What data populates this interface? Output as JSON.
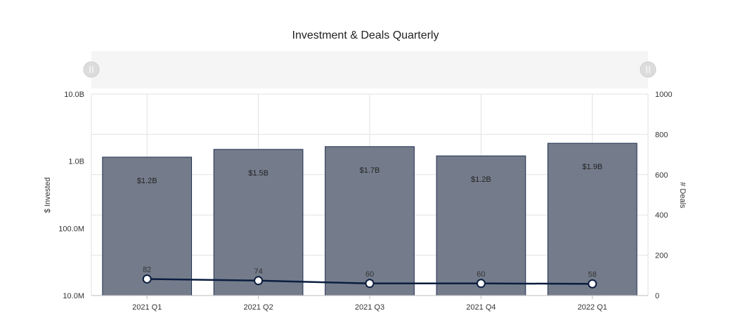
{
  "chart_data": {
    "type": "bar",
    "title": "Investment & Deals Quarterly",
    "categories": [
      "2021 Q1",
      "2021 Q2",
      "2021 Q3",
      "2021 Q4",
      "2022 Q1"
    ],
    "y_left": {
      "label": "$ Invested",
      "scale": "log",
      "ticks": [
        "10.0M",
        "100.0M",
        "1.0B",
        "10.0B"
      ],
      "tick_values": [
        10000000,
        100000000,
        1000000000,
        10000000000
      ],
      "range": [
        10000000,
        10000000000
      ]
    },
    "y_right": {
      "label": "# Deals",
      "scale": "linear",
      "ticks": [
        "0",
        "200",
        "400",
        "600",
        "800",
        "1000"
      ],
      "tick_values": [
        0,
        200,
        400,
        600,
        800,
        1000
      ],
      "range": [
        0,
        1000
      ]
    },
    "series": [
      {
        "name": "$ Invested",
        "type": "bar",
        "axis": "left",
        "values": [
          1150000000,
          1500000000,
          1650000000,
          1200000000,
          1850000000
        ],
        "labels": [
          "$1.2B",
          "$1.5B",
          "$1.7B",
          "$1.2B",
          "$1.9B"
        ],
        "color": "#747c8b",
        "stroke": "#1f2d4d"
      },
      {
        "name": "# Deals",
        "type": "line",
        "axis": "right",
        "values": [
          82,
          74,
          60,
          60,
          58
        ],
        "labels": [
          "82",
          "74",
          "60",
          "60",
          "58"
        ],
        "color": "#0b1e3f"
      }
    ],
    "grid": true,
    "legend": "none",
    "navigator": true
  }
}
